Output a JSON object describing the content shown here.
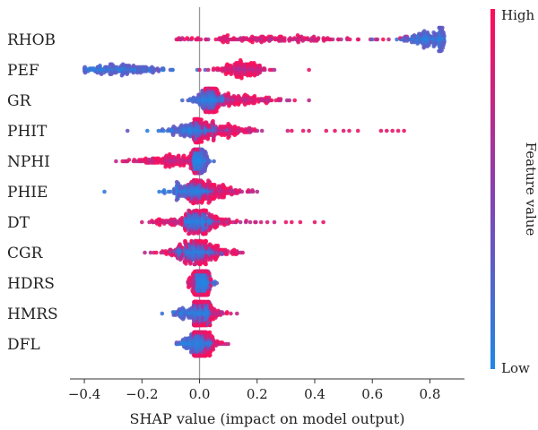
{
  "chart_data": {
    "type": "scatter",
    "subtype": "shap-beeswarm",
    "title": "",
    "xlabel": "SHAP value (impact on model output)",
    "ylabel": "",
    "xlim": [
      -0.45,
      0.92
    ],
    "xticks": [
      -0.4,
      -0.2,
      0.0,
      0.2,
      0.4,
      0.6,
      0.8
    ],
    "xtick_labels": [
      "−0.4",
      "−0.2",
      "0.0",
      "0.2",
      "0.4",
      "0.6",
      "0.8"
    ],
    "grid": false,
    "colorbar": {
      "title": "Feature value",
      "high_label": "High",
      "low_label": "Low",
      "high_color": "#ff0d57",
      "low_color": "#1e88e5"
    },
    "features": [
      {
        "name": "RHOB",
        "low": {
          "min": 0.6,
          "max": 0.85,
          "center": 0.8,
          "spread": 0.05
        },
        "high": {
          "min": -0.08,
          "max": 0.72,
          "center": 0.25,
          "spread": 0.18
        },
        "outliers": []
      },
      {
        "name": "PEF",
        "low": {
          "min": -0.4,
          "max": 0.02,
          "center": -0.27,
          "spread": 0.08
        },
        "high": {
          "min": 0.0,
          "max": 0.26,
          "center": 0.15,
          "spread": 0.04
        },
        "outliers": [
          {
            "x": 0.38,
            "v": 0.9
          }
        ]
      },
      {
        "name": "GR",
        "low": {
          "min": -0.06,
          "max": 0.12,
          "center": 0.03,
          "spread": 0.03
        },
        "high": {
          "min": 0.02,
          "max": 0.38,
          "center": 0.12,
          "spread": 0.09
        },
        "outliers": []
      },
      {
        "name": "PHIT",
        "low": {
          "min": -0.25,
          "max": 0.1,
          "center": -0.02,
          "spread": 0.05
        },
        "high": {
          "min": -0.02,
          "max": 0.32,
          "center": 0.06,
          "spread": 0.07
        },
        "outliers": [
          {
            "x": 0.36,
            "v": 0.9
          },
          {
            "x": 0.38,
            "v": 0.85
          },
          {
            "x": 0.44,
            "v": 0.9
          },
          {
            "x": 0.47,
            "v": 0.9
          },
          {
            "x": 0.5,
            "v": 0.85
          },
          {
            "x": 0.52,
            "v": 0.9
          },
          {
            "x": 0.55,
            "v": 0.9
          },
          {
            "x": 0.63,
            "v": 0.9
          },
          {
            "x": 0.65,
            "v": 0.9
          },
          {
            "x": 0.67,
            "v": 0.9
          },
          {
            "x": 0.69,
            "v": 0.9
          },
          {
            "x": 0.71,
            "v": 0.9
          }
        ]
      },
      {
        "name": "NPHI",
        "low": {
          "min": -0.02,
          "max": 0.05,
          "center": 0.0,
          "spread": 0.015
        },
        "high": {
          "min": -0.29,
          "max": 0.0,
          "center": -0.08,
          "spread": 0.07
        },
        "outliers": []
      },
      {
        "name": "PHIE",
        "low": {
          "min": -0.14,
          "max": 0.05,
          "center": -0.03,
          "spread": 0.04
        },
        "high": {
          "min": -0.04,
          "max": 0.2,
          "center": 0.04,
          "spread": 0.06
        },
        "outliers": [
          {
            "x": -0.33,
            "v": 0.1
          }
        ]
      },
      {
        "name": "DT",
        "low": {
          "min": -0.05,
          "max": 0.1,
          "center": 0.0,
          "spread": 0.03
        },
        "high": {
          "min": -0.2,
          "max": 0.26,
          "center": 0.0,
          "spread": 0.09
        },
        "outliers": [
          {
            "x": 0.3,
            "v": 0.9
          },
          {
            "x": 0.32,
            "v": 0.9
          },
          {
            "x": 0.35,
            "v": 0.9
          },
          {
            "x": 0.4,
            "v": 0.9
          },
          {
            "x": 0.43,
            "v": 0.9
          }
        ]
      },
      {
        "name": "CGR",
        "low": {
          "min": -0.1,
          "max": 0.08,
          "center": -0.01,
          "spread": 0.04
        },
        "high": {
          "min": -0.19,
          "max": 0.15,
          "center": 0.0,
          "spread": 0.07
        },
        "outliers": []
      },
      {
        "name": "HDRS",
        "low": {
          "min": -0.01,
          "max": 0.06,
          "center": 0.01,
          "spread": 0.015
        },
        "high": {
          "min": -0.04,
          "max": 0.04,
          "center": 0.0,
          "spread": 0.02
        },
        "outliers": []
      },
      {
        "name": "HMRS",
        "low": {
          "min": -0.13,
          "max": 0.04,
          "center": -0.01,
          "spread": 0.04
        },
        "high": {
          "min": -0.02,
          "max": 0.13,
          "center": 0.01,
          "spread": 0.04
        },
        "outliers": []
      },
      {
        "name": "DFL",
        "low": {
          "min": -0.08,
          "max": 0.05,
          "center": -0.01,
          "spread": 0.03
        },
        "high": {
          "min": -0.02,
          "max": 0.1,
          "center": 0.01,
          "spread": 0.03
        },
        "outliers": []
      }
    ]
  }
}
